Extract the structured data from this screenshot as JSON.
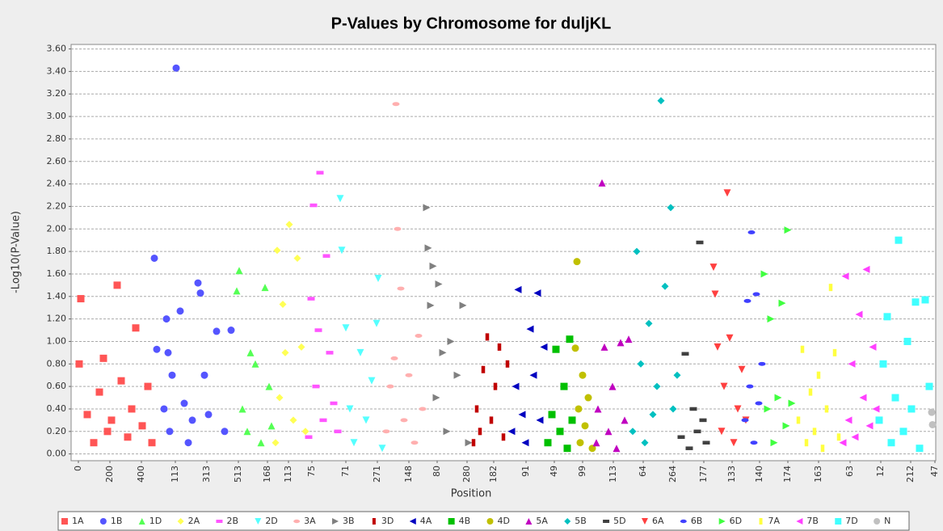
{
  "chart_data": {
    "type": "scatter",
    "title": "P-Values by Chromosome for duljKL",
    "xlabel": "Position",
    "ylabel": "-Log10(P-Value)",
    "xlim": [
      0,
      1070
    ],
    "ylim": [
      -0.06,
      3.64
    ],
    "grid": true,
    "legend": "bottom",
    "xticks": [
      {
        "value": 9,
        "label": "0"
      },
      {
        "value": 48,
        "label": "200"
      },
      {
        "value": 87,
        "label": "400"
      },
      {
        "value": 129,
        "label": "113"
      },
      {
        "value": 168,
        "label": "313"
      },
      {
        "value": 207,
        "label": "513"
      },
      {
        "value": 243,
        "label": "168"
      },
      {
        "value": 269,
        "label": "113"
      },
      {
        "value": 298,
        "label": "75"
      },
      {
        "value": 340,
        "label": "71"
      },
      {
        "value": 379,
        "label": "271"
      },
      {
        "value": 418,
        "label": "148"
      },
      {
        "value": 453,
        "label": "80"
      },
      {
        "value": 490,
        "label": "280"
      },
      {
        "value": 523,
        "label": "182"
      },
      {
        "value": 563,
        "label": "91"
      },
      {
        "value": 598,
        "label": "49"
      },
      {
        "value": 633,
        "label": "99"
      },
      {
        "value": 671,
        "label": "113"
      },
      {
        "value": 708,
        "label": "64"
      },
      {
        "value": 745,
        "label": "264"
      },
      {
        "value": 783,
        "label": "177"
      },
      {
        "value": 818,
        "label": "133"
      },
      {
        "value": 852,
        "label": "140"
      },
      {
        "value": 887,
        "label": "174"
      },
      {
        "value": 925,
        "label": "163"
      },
      {
        "value": 964,
        "label": "63"
      },
      {
        "value": 1002,
        "label": "12"
      },
      {
        "value": 1039,
        "label": "212"
      },
      {
        "value": 1069,
        "label": "47"
      }
    ],
    "yticks": [
      {
        "value": 0,
        "label": "0.00"
      },
      {
        "value": 0.2,
        "label": "0.20"
      },
      {
        "value": 0.4,
        "label": "0.40"
      },
      {
        "value": 0.6,
        "label": "0.60"
      },
      {
        "value": 0.8,
        "label": "0.80"
      },
      {
        "value": 1.0,
        "label": "1.00"
      },
      {
        "value": 1.2,
        "label": "1.20"
      },
      {
        "value": 1.4,
        "label": "1.40"
      },
      {
        "value": 1.6,
        "label": "1.60"
      },
      {
        "value": 1.8,
        "label": "1.80"
      },
      {
        "value": 2.0,
        "label": "2.00"
      },
      {
        "value": 2.2,
        "label": "2.20"
      },
      {
        "value": 2.4,
        "label": "2.40"
      },
      {
        "value": 2.6,
        "label": "2.60"
      },
      {
        "value": 2.8,
        "label": "2.80"
      },
      {
        "value": 3.0,
        "label": "3.00"
      },
      {
        "value": 3.2,
        "label": "3.20"
      },
      {
        "value": 3.4,
        "label": "3.40"
      },
      {
        "value": 3.6,
        "label": "3.60"
      }
    ],
    "series": [
      {
        "name": "1A",
        "color": "#ff5555",
        "marker": "square",
        "x": [
          10,
          12,
          20,
          28,
          35,
          40,
          45,
          50,
          57,
          62,
          70,
          75,
          80,
          88,
          95,
          100
        ],
        "values": [
          0.8,
          1.38,
          0.35,
          0.1,
          0.55,
          0.85,
          0.2,
          0.3,
          1.5,
          0.65,
          0.15,
          0.4,
          1.12,
          0.25,
          0.6,
          0.1
        ]
      },
      {
        "name": "1B",
        "color": "#5555ff",
        "marker": "circle",
        "x": [
          103,
          106,
          115,
          118,
          120,
          122,
          125,
          130,
          135,
          140,
          145,
          150,
          157,
          160,
          165,
          170,
          180,
          190,
          198
        ],
        "values": [
          1.74,
          0.93,
          0.4,
          1.2,
          0.9,
          0.2,
          0.7,
          3.43,
          1.27,
          0.45,
          0.1,
          0.3,
          1.52,
          1.43,
          0.7,
          0.35,
          1.09,
          0.2,
          1.1
        ]
      },
      {
        "name": "1D",
        "color": "#55ff55",
        "marker": "tri-up",
        "x": [
          205,
          208,
          212,
          218,
          222,
          228,
          235,
          240,
          245,
          248
        ],
        "values": [
          1.45,
          1.63,
          0.4,
          0.2,
          0.9,
          0.8,
          0.1,
          1.48,
          0.6,
          0.25
        ]
      },
      {
        "name": "2A",
        "color": "#ffff55",
        "marker": "diamond",
        "x": [
          253,
          255,
          258,
          262,
          265,
          270,
          275,
          280,
          285,
          290
        ],
        "values": [
          0.1,
          1.81,
          0.5,
          1.33,
          0.9,
          2.04,
          0.3,
          1.74,
          0.95,
          0.2
        ]
      },
      {
        "name": "2B",
        "color": "#ff55ff",
        "marker": "hrect",
        "x": [
          294,
          297,
          300,
          303,
          306,
          308,
          312,
          316,
          320,
          325,
          330
        ],
        "values": [
          0.15,
          1.38,
          2.21,
          0.6,
          1.1,
          2.5,
          0.3,
          1.76,
          0.9,
          0.45,
          0.2
        ]
      },
      {
        "name": "2D",
        "color": "#55ffff",
        "marker": "tri-down",
        "x": [
          333,
          335,
          340,
          345,
          350,
          358,
          365,
          372,
          378,
          380,
          385
        ],
        "values": [
          2.27,
          1.81,
          1.12,
          0.4,
          0.1,
          0.9,
          0.3,
          0.65,
          1.16,
          1.56,
          0.05
        ]
      },
      {
        "name": "3A",
        "color": "#ffafaf",
        "marker": "ellipse",
        "x": [
          390,
          395,
          400,
          402,
          404,
          408,
          412,
          418,
          425,
          430,
          435
        ],
        "values": [
          0.2,
          0.6,
          0.85,
          3.11,
          2.0,
          1.47,
          0.3,
          0.7,
          0.1,
          1.05,
          0.4
        ]
      },
      {
        "name": "3B",
        "color": "#808080",
        "marker": "tri-right",
        "x": [
          440,
          442,
          445,
          448,
          452,
          455,
          460,
          465,
          470,
          478,
          485,
          492
        ],
        "values": [
          2.19,
          1.83,
          1.32,
          1.67,
          0.5,
          1.51,
          0.9,
          0.2,
          1.0,
          0.7,
          1.32,
          0.1
        ]
      },
      {
        "name": "3D",
        "color": "#c00000",
        "marker": "vrect",
        "x": [
          498,
          502,
          506,
          510,
          515,
          520,
          525,
          530,
          535,
          540
        ],
        "values": [
          0.1,
          0.4,
          0.2,
          0.75,
          1.04,
          0.3,
          0.6,
          0.95,
          0.15,
          0.8
        ]
      },
      {
        "name": "4A",
        "color": "#0000c0",
        "marker": "tri-left",
        "x": [
          545,
          550,
          553,
          558,
          562,
          568,
          572,
          577,
          580,
          585
        ],
        "values": [
          0.2,
          0.6,
          1.46,
          0.35,
          0.1,
          1.11,
          0.7,
          1.43,
          0.3,
          0.95
        ]
      },
      {
        "name": "4B",
        "color": "#00c000",
        "marker": "square",
        "x": [
          590,
          595,
          600,
          605,
          610,
          614,
          617,
          620
        ],
        "values": [
          0.1,
          0.35,
          0.93,
          0.2,
          0.6,
          0.05,
          1.02,
          0.3
        ]
      },
      {
        "name": "4D",
        "color": "#c0c000",
        "marker": "circle",
        "x": [
          624,
          626,
          628,
          630,
          633,
          636,
          640,
          645
        ],
        "values": [
          0.94,
          1.71,
          0.4,
          0.1,
          0.7,
          0.25,
          0.5,
          0.05
        ]
      },
      {
        "name": "5A",
        "color": "#c000c0",
        "marker": "tri-up",
        "x": [
          650,
          652,
          657,
          660,
          665,
          670,
          675,
          680,
          685,
          690
        ],
        "values": [
          0.1,
          0.4,
          2.41,
          0.95,
          0.2,
          0.6,
          0.05,
          0.99,
          0.3,
          1.02
        ]
      },
      {
        "name": "5B",
        "color": "#00c0c0",
        "marker": "diamond",
        "x": [
          695,
          700,
          705,
          710,
          715,
          720,
          725,
          730,
          735,
          742,
          745,
          750
        ],
        "values": [
          0.2,
          1.8,
          0.8,
          0.1,
          1.16,
          0.35,
          0.6,
          3.14,
          1.49,
          2.19,
          0.4,
          0.7
        ]
      },
      {
        "name": "5D",
        "color": "#404040",
        "marker": "hrect",
        "x": [
          755,
          760,
          765,
          770,
          775,
          778,
          782,
          786
        ],
        "values": [
          0.15,
          0.89,
          0.05,
          0.4,
          0.2,
          1.88,
          0.3,
          0.1
        ]
      },
      {
        "name": "6A",
        "color": "#ff4040",
        "marker": "tri-down",
        "x": [
          795,
          797,
          800,
          805,
          808,
          812,
          815,
          820,
          825,
          830,
          835
        ],
        "values": [
          1.66,
          1.42,
          0.95,
          0.2,
          0.6,
          2.32,
          1.03,
          0.1,
          0.4,
          0.75,
          0.3
        ]
      },
      {
        "name": "6B",
        "color": "#4040ff",
        "marker": "ellipse",
        "x": [
          834,
          837,
          840,
          842,
          845,
          848,
          851,
          855
        ],
        "values": [
          0.3,
          1.36,
          0.6,
          1.97,
          0.1,
          1.42,
          0.45,
          0.8
        ]
      },
      {
        "name": "6D",
        "color": "#40ff40",
        "marker": "tri-right",
        "x": [
          858,
          862,
          866,
          870,
          875,
          880,
          885,
          887,
          892
        ],
        "values": [
          1.6,
          0.4,
          1.2,
          0.1,
          0.5,
          1.34,
          0.25,
          1.99,
          0.45
        ]
      },
      {
        "name": "7A",
        "color": "#ffff40",
        "marker": "vrect",
        "x": [
          900,
          905,
          910,
          915,
          920,
          925,
          930,
          935,
          940,
          945,
          950
        ],
        "values": [
          0.3,
          0.93,
          0.1,
          0.55,
          0.2,
          0.7,
          0.05,
          0.4,
          1.48,
          0.9,
          0.15
        ]
      },
      {
        "name": "7B",
        "color": "#ff40ff",
        "marker": "tri-left",
        "x": [
          955,
          958,
          962,
          966,
          970,
          975,
          980,
          984,
          988,
          992,
          996
        ],
        "values": [
          0.1,
          1.58,
          0.3,
          0.8,
          0.15,
          1.24,
          0.5,
          1.64,
          0.25,
          0.95,
          0.4
        ]
      },
      {
        "name": "7D",
        "color": "#40ffff",
        "marker": "square",
        "x": [
          1000,
          1005,
          1010,
          1015,
          1020,
          1024,
          1030,
          1035,
          1040,
          1045,
          1050,
          1057,
          1062
        ],
        "values": [
          0.3,
          0.8,
          1.22,
          0.1,
          0.5,
          1.9,
          0.2,
          1.0,
          0.4,
          1.35,
          0.05,
          1.37,
          0.6
        ]
      },
      {
        "name": "N",
        "color": "#c0c0c0",
        "marker": "circle",
        "x": [
          1065,
          1066
        ],
        "values": [
          0.37,
          0.26
        ]
      }
    ]
  }
}
